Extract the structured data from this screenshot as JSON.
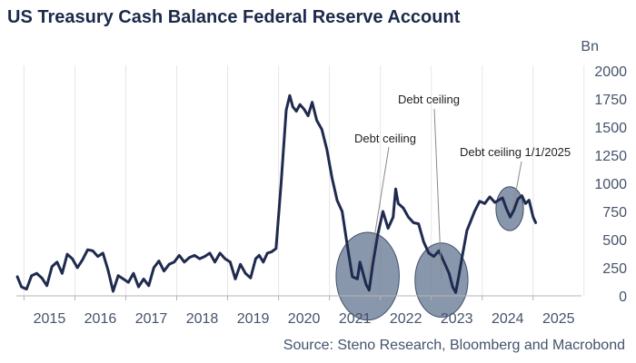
{
  "title": "US Treasury Cash Balance Federal Reserve Account",
  "source": "Source: Steno Research, Bloomberg and Macrobond",
  "colors": {
    "line": "#1f2a4f",
    "grid": "#e6e6e6",
    "ellipse_fill": "#5c6f8c",
    "ellipse_stroke": "#3f4f6a"
  },
  "chart_data": {
    "type": "line",
    "ylabel": "Bn",
    "ylim": [
      0,
      2000
    ],
    "xlim": [
      2014.85,
      2025.95
    ],
    "yticks": [
      "0",
      "250",
      "500",
      "750",
      "1000",
      "1250",
      "1500",
      "1750",
      "2000"
    ],
    "xtick_labels": [
      "2015",
      "2016",
      "2017",
      "2018",
      "2019",
      "2020",
      "2021",
      "2022",
      "2023",
      "2024",
      "2025"
    ],
    "grid": "vertical",
    "y_axis_position": "right",
    "series": [
      {
        "x": [
          2014.87,
          2014.95,
          2015.05,
          2015.15,
          2015.25,
          2015.35,
          2015.45,
          2015.55,
          2015.65,
          2015.75,
          2015.85,
          2015.95,
          2016.05,
          2016.15,
          2016.25,
          2016.35,
          2016.45,
          2016.55,
          2016.65,
          2016.75,
          2016.85,
          2016.95,
          2017.05,
          2017.15,
          2017.25,
          2017.35,
          2017.45,
          2017.55,
          2017.65,
          2017.75,
          2017.85,
          2017.95,
          2018.05,
          2018.15,
          2018.25,
          2018.35,
          2018.45,
          2018.55,
          2018.65,
          2018.75,
          2018.85,
          2018.95,
          2019.05,
          2019.15,
          2019.25,
          2019.35,
          2019.45,
          2019.55,
          2019.62,
          2019.7,
          2019.78,
          2019.86,
          2019.95,
          2020.05,
          2020.15,
          2020.22,
          2020.28,
          2020.35,
          2020.42,
          2020.5,
          2020.58,
          2020.66,
          2020.75,
          2020.85,
          2020.95,
          2021.05,
          2021.15,
          2021.25,
          2021.35,
          2021.45,
          2021.55,
          2021.6,
          2021.66,
          2021.72,
          2021.78,
          2021.85,
          2021.95,
          2022.05,
          2022.15,
          2022.25,
          2022.3,
          2022.35,
          2022.45,
          2022.55,
          2022.65,
          2022.75,
          2022.85,
          2022.95,
          2023.05,
          2023.15,
          2023.25,
          2023.35,
          2023.42,
          2023.48,
          2023.55,
          2023.62,
          2023.7,
          2023.78,
          2023.85,
          2023.95,
          2024.05,
          2024.15,
          2024.25,
          2024.32,
          2024.4,
          2024.47,
          2024.55,
          2024.62,
          2024.7,
          2024.78,
          2024.85,
          2024.92,
          2025.0,
          2025.05
        ],
        "values": [
          170,
          80,
          60,
          180,
          200,
          160,
          90,
          260,
          300,
          200,
          370,
          330,
          250,
          320,
          410,
          400,
          350,
          380,
          230,
          40,
          180,
          150,
          120,
          200,
          80,
          150,
          90,
          250,
          310,
          220,
          280,
          300,
          360,
          300,
          340,
          360,
          330,
          350,
          380,
          300,
          380,
          330,
          300,
          150,
          280,
          200,
          160,
          330,
          360,
          300,
          380,
          390,
          420,
          1000,
          1650,
          1780,
          1680,
          1640,
          1700,
          1660,
          1600,
          1720,
          1560,
          1480,
          1300,
          1050,
          850,
          750,
          450,
          170,
          150,
          300,
          200,
          100,
          50,
          280,
          550,
          750,
          600,
          700,
          950,
          820,
          780,
          700,
          650,
          640,
          480,
          380,
          350,
          400,
          300,
          200,
          80,
          30,
          200,
          380,
          580,
          670,
          750,
          840,
          820,
          880,
          830,
          850,
          870,
          780,
          700,
          760,
          860,
          890,
          820,
          850,
          700,
          650
        ]
      }
    ],
    "annotations": [
      {
        "text": "Debt ceiling",
        "target_x": 2021.75,
        "target_y": 150
      },
      {
        "text": "Debt ceiling",
        "target_x": 2023.2,
        "target_y": 150
      },
      {
        "text": "Debt ceiling 1/1/2025",
        "target_x": 2024.6,
        "target_y": 775
      }
    ],
    "shaded_regions": [
      {
        "x_center": 2021.75,
        "y_center": 175,
        "x_radius": 0.62,
        "y_radius": 390
      },
      {
        "x_center": 2023.2,
        "y_center": 140,
        "x_radius": 0.52,
        "y_radius": 330
      },
      {
        "x_center": 2024.54,
        "y_center": 775,
        "x_radius": 0.27,
        "y_radius": 195
      }
    ]
  }
}
